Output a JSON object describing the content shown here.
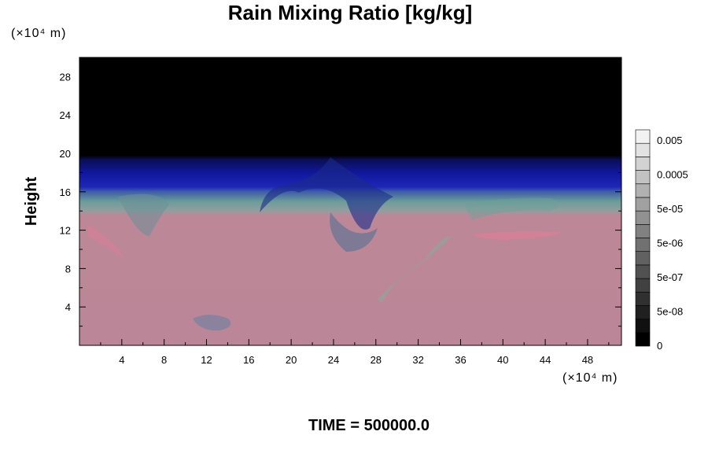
{
  "chart_data": {
    "type": "heatmap",
    "title": "Rain Mixing Ratio [kg/kg]",
    "ylabel": "Height",
    "xlabel": "",
    "x_unit": "(×10⁴ m)",
    "y_unit": "(×10⁴ m)",
    "xlim": [
      0,
      51.2
    ],
    "ylim": [
      0,
      30
    ],
    "x_ticks": [
      4,
      8,
      12,
      16,
      20,
      24,
      28,
      32,
      36,
      40,
      44,
      48
    ],
    "y_ticks": [
      4,
      8,
      12,
      16,
      20,
      24,
      28
    ],
    "colorbar": {
      "labels": [
        "0.005",
        "0.0005",
        "5e-05",
        "5e-06",
        "5e-07",
        "5e-08",
        "0"
      ],
      "levels": 16
    },
    "regions": [
      {
        "name": "upper-black",
        "from": 19.8,
        "to": 30,
        "color": "#000000"
      },
      {
        "name": "blue-band",
        "from": 16.2,
        "to": 19.8,
        "color": "#1a1fa0"
      },
      {
        "name": "transition-teal",
        "from": 13.5,
        "to": 16.2,
        "color": "#5f8f95"
      },
      {
        "name": "lower-pink",
        "from": 0,
        "to": 13.5,
        "color": "#bb8798"
      }
    ]
  },
  "footer": "TIME = 500000.0"
}
